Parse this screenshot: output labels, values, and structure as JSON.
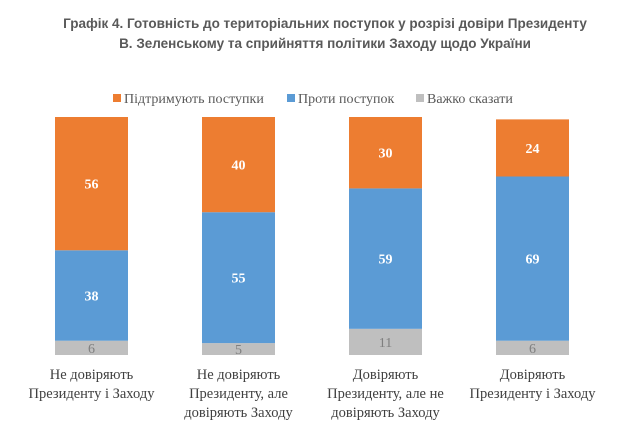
{
  "chart_data": {
    "type": "bar",
    "stacked": true,
    "title": "Графік 4. Готовність до територіальних поступок у розрізі довіри Президенту В. Зеленському та сприйняття політики Заходу щодо України",
    "title_lines": [
      "Графік 4. Готовність до територіальних поступок у розрізі довіри Президенту",
      "В. Зеленському та сприйняття політики Заходу щодо України"
    ],
    "categories": [
      [
        "Не довіряють",
        "Президенту і Заходу"
      ],
      [
        "Не довіряють",
        "Президенту, але",
        "довіряють Заходу"
      ],
      [
        "Довіряють",
        "Президенту, але не",
        "довіряють Заходу"
      ],
      [
        "Довіряють",
        "Президенту і Заходу"
      ]
    ],
    "series": [
      {
        "name": "Підтримують поступки",
        "color": "#ED7D31",
        "values": [
          56,
          40,
          30,
          24
        ]
      },
      {
        "name": "Проти поступок",
        "color": "#5B9BD5",
        "values": [
          38,
          55,
          59,
          69
        ]
      },
      {
        "name": "Важко сказати",
        "color": "#BFBFBF",
        "values": [
          6,
          5,
          11,
          6
        ]
      }
    ],
    "ylim": [
      0,
      100
    ],
    "legend_position": "top",
    "grid": false,
    "xlabel": "",
    "ylabel": ""
  }
}
